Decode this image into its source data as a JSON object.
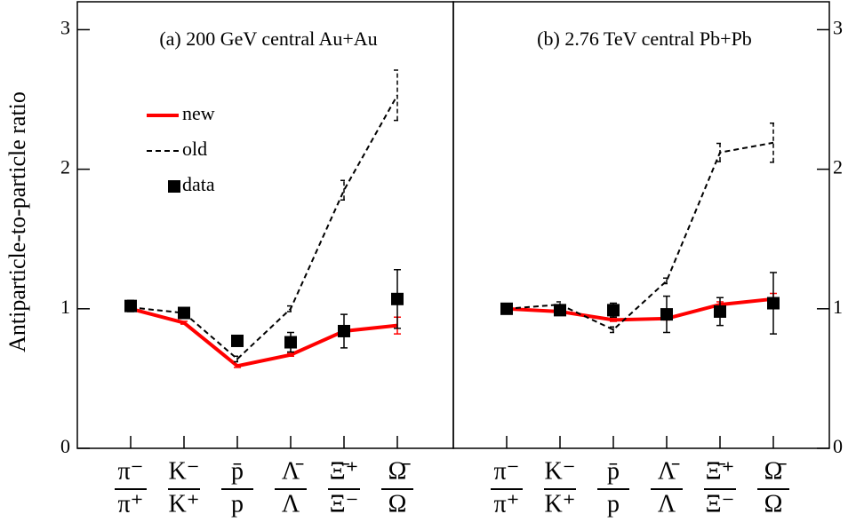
{
  "chart_data": [
    {
      "type": "line",
      "title": "(a) 200 GeV central Au+Au",
      "ylabel": "Antiparticle-to-particle ratio",
      "categories": [
        [
          "π⁻",
          "π⁺"
        ],
        [
          "K⁻",
          "K⁺"
        ],
        [
          "p̄",
          "p"
        ],
        [
          "Λ̄",
          "Λ"
        ],
        [
          "Ξ̄⁺",
          "Ξ⁻"
        ],
        [
          "Ω̄",
          "Ω"
        ]
      ],
      "ylim": [
        0,
        3.2
      ],
      "yticks": [
        0,
        1,
        2,
        3
      ],
      "yaxis_side": "left",
      "legend": "upper left",
      "series": [
        {
          "name": "new",
          "color": "#ff0000",
          "style": "solid",
          "values": [
            1.0,
            0.9,
            0.59,
            0.67,
            0.84,
            0.88
          ],
          "errors": [
            0.01,
            0.01,
            0.01,
            0.01,
            0.02,
            0.06
          ]
        },
        {
          "name": "old",
          "color": "#000000",
          "style": "dashed",
          "values": [
            1.01,
            0.97,
            0.64,
            1.0,
            1.85,
            2.53
          ],
          "errors": [
            0.01,
            0.02,
            0.02,
            0.02,
            0.07,
            0.18
          ]
        },
        {
          "name": "data",
          "color": "#000000",
          "style": "markers",
          "values": [
            1.02,
            0.97,
            0.77,
            0.76,
            0.84,
            1.07
          ],
          "errors": [
            0.04,
            0.03,
            0.03,
            0.07,
            0.12,
            0.21
          ]
        }
      ]
    },
    {
      "type": "line",
      "title": "(b) 2.76 TeV central Pb+Pb",
      "categories": [
        [
          "π⁻",
          "π⁺"
        ],
        [
          "K⁻",
          "K⁺"
        ],
        [
          "p̄",
          "p"
        ],
        [
          "Λ̄",
          "Λ"
        ],
        [
          "Ξ̄⁺",
          "Ξ⁻"
        ],
        [
          "Ω̄",
          "Ω"
        ]
      ],
      "ylim": [
        0,
        3.2
      ],
      "yticks": [
        0,
        1,
        2,
        3
      ],
      "yaxis_side": "right",
      "series": [
        {
          "color": "#ff0000",
          "style": "solid",
          "values": [
            1.0,
            0.98,
            0.92,
            0.93,
            1.03,
            1.07
          ],
          "errors": [
            0.01,
            0.01,
            0.01,
            0.01,
            0.02,
            0.04
          ]
        },
        {
          "color": "#000000",
          "style": "dashed",
          "values": [
            1.0,
            1.03,
            0.85,
            1.2,
            2.12,
            2.19
          ],
          "errors": [
            0.01,
            0.02,
            0.02,
            0.02,
            0.065,
            0.14
          ]
        },
        {
          "color": "#000000",
          "style": "markers",
          "values": [
            1.0,
            0.99,
            0.99,
            0.96,
            0.98,
            1.04
          ],
          "errors": [
            0.01,
            0.03,
            0.05,
            0.13,
            0.1,
            0.22
          ]
        }
      ]
    }
  ]
}
